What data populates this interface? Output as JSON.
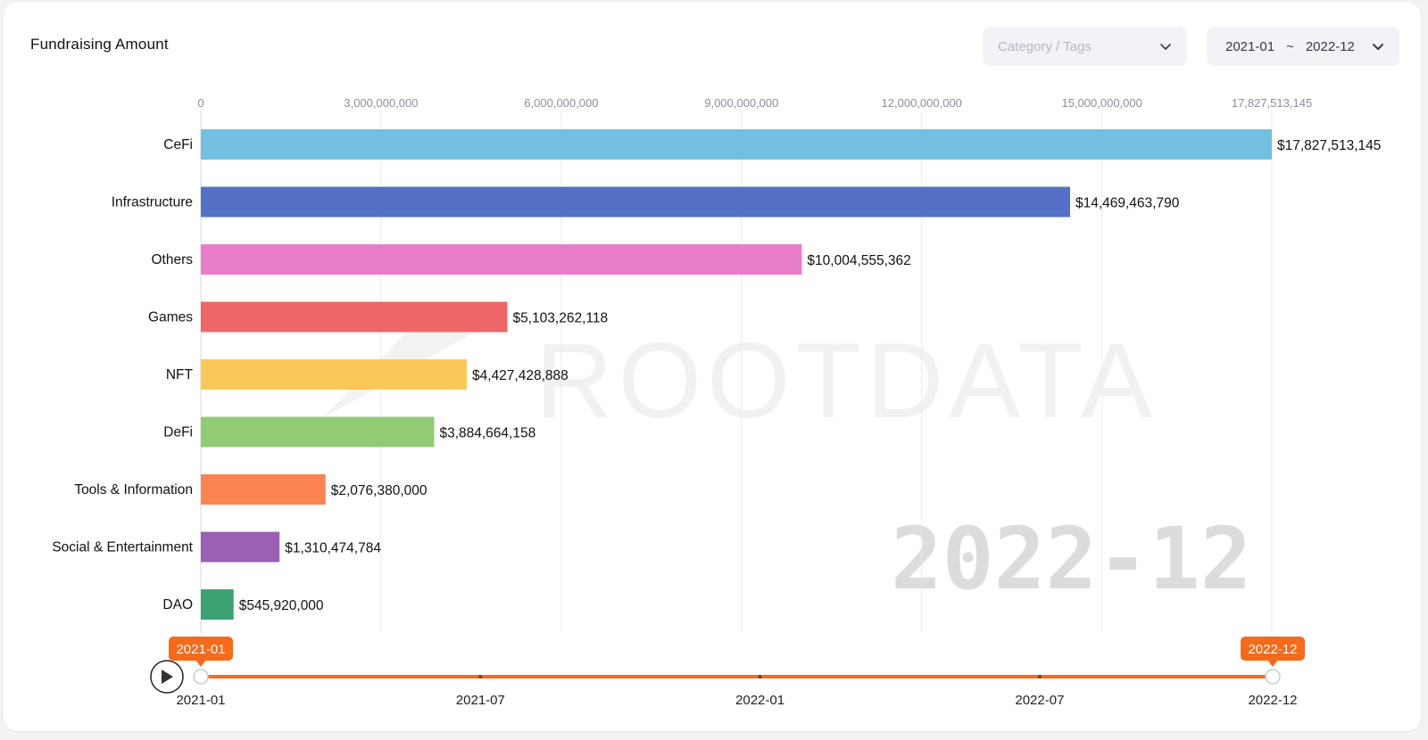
{
  "header": {
    "title": "Fundraising Amount",
    "category_placeholder": "Category / Tags",
    "date_start": "2021-01",
    "date_separator": "~",
    "date_end": "2022-12"
  },
  "watermark": {
    "brand": "ROOTDATA",
    "current_period": "2022-12"
  },
  "colors": {
    "bar_cefi": "#73bfdf",
    "bar_infrastructure": "#5470c6",
    "bar_others": "#ea7ccc",
    "bar_games": "#ee6666",
    "bar_nft": "#fac858",
    "bar_defi": "#91cc75",
    "bar_tools": "#fc8452",
    "bar_social": "#9a60b4",
    "bar_dao": "#3ba272",
    "timeline_accent": "#f56a1b"
  },
  "chart_data": {
    "type": "bar",
    "orientation": "horizontal",
    "title": "",
    "categories": [
      "CeFi",
      "Infrastructure",
      "Others",
      "Games",
      "NFT",
      "DeFi",
      "Tools & Information",
      "Social & Entertainment",
      "DAO"
    ],
    "values": [
      17827513145,
      14469463790,
      10004555362,
      5103262118,
      4427428888,
      3884664158,
      2076380000,
      1310474784,
      545920000
    ],
    "value_labels": [
      "$17,827,513,145",
      "$14,469,463,790",
      "$10,004,555,362",
      "$5,103,262,118",
      "$4,427,428,888",
      "$3,884,664,158",
      "$2,076,380,000",
      "$1,310,474,784",
      "$545,920,000"
    ],
    "xlim": [
      0,
      17827513145
    ],
    "x_ticks": [
      0,
      3000000000,
      6000000000,
      9000000000,
      12000000000,
      15000000000,
      17827513145
    ],
    "x_tick_labels": [
      "0",
      "3,000,000,000",
      "6,000,000,000",
      "9,000,000,000",
      "12,000,000,000",
      "15,000,000,000",
      "17,827,513,145"
    ],
    "x_axis_position": "top",
    "grid": true,
    "legend": "none"
  },
  "timeline": {
    "start_label": "2021-01",
    "end_label": "2022-12",
    "tick_labels": [
      "2021-01",
      "2021-07",
      "2022-01",
      "2022-07",
      "2022-12"
    ],
    "tick_fraction": [
      0,
      0.2609,
      0.5217,
      0.7826,
      1.0
    ],
    "range_start_fraction": 0,
    "range_end_fraction": 1.0,
    "play_icon": "play-icon"
  }
}
